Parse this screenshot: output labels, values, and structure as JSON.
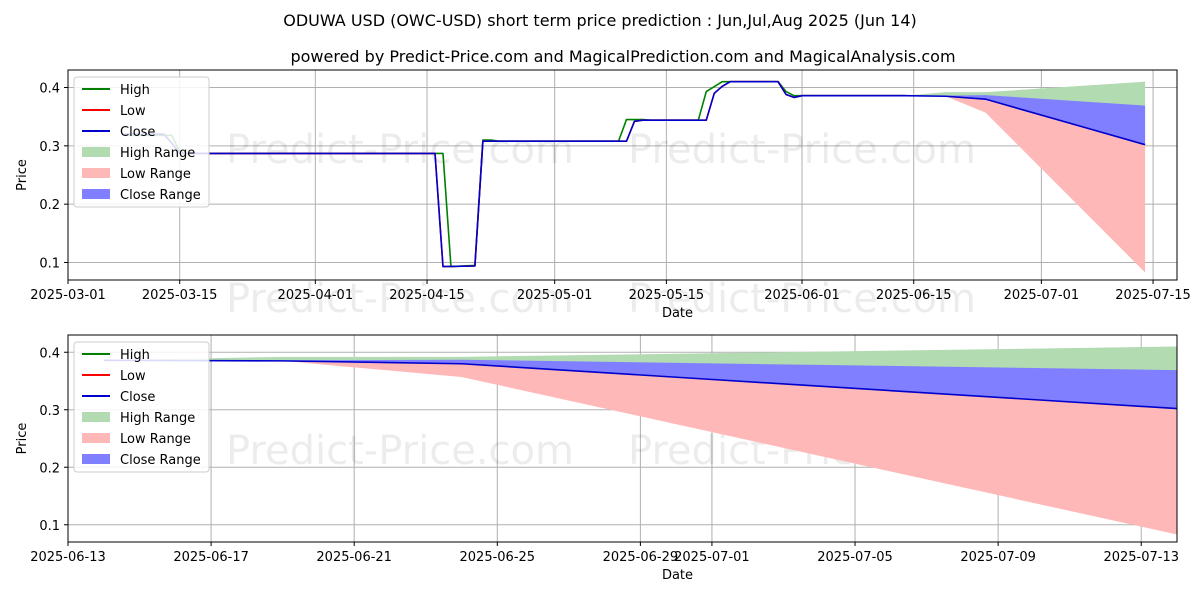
{
  "title": "ODUWA USD (OWC-USD) short term price prediction : Jun,Jul,Aug 2025 (Jun 14)",
  "subtitle": "powered by Predict-Price.com and MagicalPrediction.com and MagicalAnalysis.com",
  "watermark": "Predict-Price.com",
  "colors": {
    "high": "#008000",
    "low": "#ff0000",
    "close": "#0000cd",
    "high_range": "#b2dbb2",
    "low_range": "#ffb8b8",
    "close_range": "#7f7fff"
  },
  "chart_data": [
    {
      "type": "line",
      "xlabel": "Date",
      "ylabel": "Price",
      "xlim": [
        "2025-03-01",
        "2025-07-18"
      ],
      "ylim": [
        0.07,
        0.43
      ],
      "x_ticks": [
        "2025-03-01",
        "2025-03-15",
        "2025-04-01",
        "2025-04-15",
        "2025-05-01",
        "2025-05-15",
        "2025-06-01",
        "2025-06-15",
        "2025-07-01",
        "2025-07-15"
      ],
      "y_ticks": [
        0.1,
        0.2,
        0.3,
        0.4
      ],
      "grid": true,
      "legend": {
        "position": "top-left",
        "entries": [
          "High",
          "Low",
          "Close",
          "High Range",
          "Low Range",
          "Close Range"
        ]
      },
      "series": [
        {
          "name": "High",
          "points": [
            [
              "2025-03-08",
              0.318
            ],
            [
              "2025-03-13",
              0.318
            ],
            [
              "2025-03-14",
              0.318
            ],
            [
              "2025-03-15",
              0.29
            ],
            [
              "2025-03-16",
              0.287
            ],
            [
              "2025-04-17",
              0.287
            ],
            [
              "2025-04-18",
              0.093
            ],
            [
              "2025-04-21",
              0.095
            ],
            [
              "2025-04-22",
              0.31
            ],
            [
              "2025-04-23",
              0.31
            ],
            [
              "2025-04-24",
              0.308
            ],
            [
              "2025-05-09",
              0.308
            ],
            [
              "2025-05-10",
              0.345
            ],
            [
              "2025-05-12",
              0.345
            ],
            [
              "2025-05-13",
              0.344
            ],
            [
              "2025-05-19",
              0.344
            ],
            [
              "2025-05-20",
              0.393
            ],
            [
              "2025-05-22",
              0.41
            ],
            [
              "2025-05-29",
              0.41
            ],
            [
              "2025-05-30",
              0.393
            ],
            [
              "2025-05-31",
              0.386
            ],
            [
              "2025-06-14",
              0.386
            ]
          ]
        },
        {
          "name": "Low",
          "points": [
            [
              "2025-03-08",
              0.32
            ],
            [
              "2025-03-13",
              0.32
            ],
            [
              "2025-03-14",
              0.305
            ],
            [
              "2025-03-15",
              0.287
            ],
            [
              "2025-04-16",
              0.287
            ],
            [
              "2025-04-17",
              0.093
            ],
            [
              "2025-04-21",
              0.094
            ],
            [
              "2025-04-22",
              0.308
            ],
            [
              "2025-05-10",
              0.308
            ],
            [
              "2025-05-11",
              0.342
            ],
            [
              "2025-05-12",
              0.344
            ],
            [
              "2025-05-20",
              0.344
            ],
            [
              "2025-05-21",
              0.39
            ],
            [
              "2025-05-22",
              0.402
            ],
            [
              "2025-05-23",
              0.41
            ],
            [
              "2025-05-29",
              0.41
            ],
            [
              "2025-05-30",
              0.388
            ],
            [
              "2025-05-31",
              0.383
            ],
            [
              "2025-06-01",
              0.386
            ],
            [
              "2025-06-14",
              0.386
            ]
          ]
        },
        {
          "name": "Close",
          "points": [
            [
              "2025-03-08",
              0.32
            ],
            [
              "2025-03-13",
              0.32
            ],
            [
              "2025-03-14",
              0.305
            ],
            [
              "2025-03-15",
              0.287
            ],
            [
              "2025-04-16",
              0.287
            ],
            [
              "2025-04-17",
              0.093
            ],
            [
              "2025-04-21",
              0.094
            ],
            [
              "2025-04-22",
              0.308
            ],
            [
              "2025-05-10",
              0.308
            ],
            [
              "2025-05-11",
              0.342
            ],
            [
              "2025-05-12",
              0.344
            ],
            [
              "2025-05-20",
              0.344
            ],
            [
              "2025-05-21",
              0.39
            ],
            [
              "2025-05-22",
              0.402
            ],
            [
              "2025-05-23",
              0.41
            ],
            [
              "2025-05-29",
              0.41
            ],
            [
              "2025-05-30",
              0.388
            ],
            [
              "2025-05-31",
              0.383
            ],
            [
              "2025-06-01",
              0.386
            ],
            [
              "2025-06-14",
              0.386
            ],
            [
              "2025-06-19",
              0.385
            ],
            [
              "2025-06-24",
              0.38
            ],
            [
              "2025-07-14",
              0.302
            ]
          ]
        }
      ],
      "ranges": [
        {
          "name": "High Range",
          "points": [
            [
              "2025-06-14",
              0.386,
              0.386
            ],
            [
              "2025-06-19",
              0.386,
              0.392
            ],
            [
              "2025-06-24",
              0.38,
              0.392
            ],
            [
              "2025-07-14",
              0.302,
              0.41
            ]
          ]
        },
        {
          "name": "Low Range",
          "points": [
            [
              "2025-06-14",
              0.386,
              0.386
            ],
            [
              "2025-06-19",
              0.385,
              0.385
            ],
            [
              "2025-06-24",
              0.357,
              0.38
            ],
            [
              "2025-07-14",
              0.083,
              0.302
            ]
          ]
        },
        {
          "name": "Close Range",
          "points": [
            [
              "2025-06-14",
              0.386,
              0.386
            ],
            [
              "2025-06-19",
              0.385,
              0.386
            ],
            [
              "2025-06-24",
              0.38,
              0.387
            ],
            [
              "2025-07-14",
              0.302,
              0.369
            ]
          ]
        }
      ]
    },
    {
      "type": "line",
      "xlabel": "Date",
      "ylabel": "Price",
      "xlim": [
        "2025-06-13",
        "2025-07-14"
      ],
      "ylim": [
        0.07,
        0.43
      ],
      "x_ticks": [
        "2025-06-13",
        "2025-06-17",
        "2025-06-21",
        "2025-06-25",
        "2025-06-29",
        "2025-07-01",
        "2025-07-05",
        "2025-07-09",
        "2025-07-13"
      ],
      "y_ticks": [
        0.1,
        0.2,
        0.3,
        0.4
      ],
      "grid": true,
      "legend": {
        "position": "top-left",
        "entries": [
          "High",
          "Low",
          "Close",
          "High Range",
          "Low Range",
          "Close Range"
        ]
      },
      "series": [
        {
          "name": "High",
          "points": [
            [
              "2025-06-14",
              0.386
            ]
          ]
        },
        {
          "name": "Low",
          "points": [
            [
              "2025-06-14",
              0.386
            ]
          ]
        },
        {
          "name": "Close",
          "points": [
            [
              "2025-06-14",
              0.386
            ],
            [
              "2025-06-19",
              0.385
            ],
            [
              "2025-06-24",
              0.38
            ],
            [
              "2025-07-14",
              0.302
            ]
          ]
        }
      ],
      "ranges": [
        {
          "name": "High Range",
          "points": [
            [
              "2025-06-14",
              0.386,
              0.386
            ],
            [
              "2025-06-19",
              0.386,
              0.392
            ],
            [
              "2025-06-24",
              0.38,
              0.392
            ],
            [
              "2025-07-14",
              0.302,
              0.41
            ]
          ]
        },
        {
          "name": "Low Range",
          "points": [
            [
              "2025-06-14",
              0.386,
              0.386
            ],
            [
              "2025-06-19",
              0.385,
              0.385
            ],
            [
              "2025-06-24",
              0.357,
              0.38
            ],
            [
              "2025-07-14",
              0.083,
              0.302
            ]
          ]
        },
        {
          "name": "Close Range",
          "points": [
            [
              "2025-06-14",
              0.386,
              0.386
            ],
            [
              "2025-06-19",
              0.385,
              0.386
            ],
            [
              "2025-06-24",
              0.38,
              0.387
            ],
            [
              "2025-07-14",
              0.302,
              0.369
            ]
          ]
        }
      ]
    }
  ]
}
